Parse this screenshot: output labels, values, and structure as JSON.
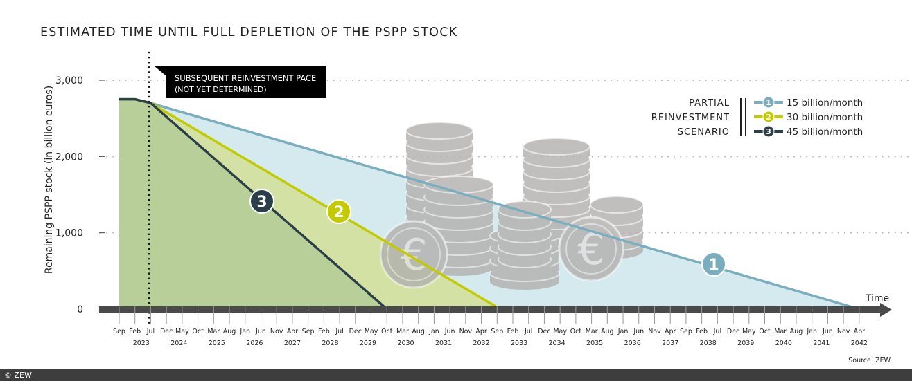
{
  "chart_data": {
    "type": "area",
    "title": "ESTIMATED TIME UNTIL FULL DEPLETION OF THE PSPP STOCK",
    "ylabel": "Remaining PSPP stock (in billion euros)",
    "xlabel": "Time",
    "ylim": [
      0,
      3000
    ],
    "yticks": [
      "0",
      "1,000",
      "2,000",
      "3,000"
    ],
    "ytick_values": [
      0,
      1000,
      2000,
      3000
    ],
    "grid": "horizontal dotted",
    "xlim": [
      "2022-09",
      "2042-04"
    ],
    "xtick_months": [
      "Sep",
      "Feb",
      "Jul",
      "Dec",
      "May",
      "Oct",
      "Mar",
      "Aug",
      "Jan",
      "Jun",
      "Nov",
      "Apr",
      "Sep",
      "Feb",
      "Jul",
      "Dec",
      "May",
      "Oct",
      "Mar",
      "Aug",
      "Jan",
      "Jun",
      "Nov",
      "Apr",
      "Sep",
      "Feb",
      "Jul",
      "Dec",
      "May",
      "Oct",
      "Mar",
      "Aug",
      "Jan",
      "Jun",
      "Nov",
      "Apr",
      "Sep",
      "Feb",
      "Jul",
      "Dec",
      "May",
      "Oct",
      "Mar",
      "Aug",
      "Jan",
      "Jun",
      "Nov",
      "Apr"
    ],
    "xtick_years": [
      "2023",
      "2024",
      "2025",
      "2026",
      "2027",
      "2028",
      "2029",
      "2030",
      "2031",
      "2032",
      "2033",
      "2034",
      "2035",
      "2036",
      "2037",
      "2038",
      "2039",
      "2040",
      "2041",
      "2042"
    ],
    "annotation": {
      "line1": "SUBSEQUENT REINVESTMENT PACE",
      "line2": "(NOT YET DETERMINED)",
      "date": "2023-07"
    },
    "legend": {
      "title_lines": [
        "PARTIAL",
        "REINVESTMENT",
        "SCENARIO"
      ],
      "placement": "top-right"
    },
    "series": [
      {
        "name": "15 billion/month",
        "marker": "1",
        "color": "#7aaebf",
        "fill": "#d5eaee",
        "points": [
          [
            "2022-09",
            2750
          ],
          [
            "2023-02",
            2750
          ],
          [
            "2023-07",
            2700
          ],
          [
            "2042-04",
            0
          ]
        ]
      },
      {
        "name": "30 billion/month",
        "marker": "2",
        "color": "#c3cb00",
        "fill": "#d3e1a4",
        "points": [
          [
            "2022-09",
            2750
          ],
          [
            "2023-02",
            2750
          ],
          [
            "2023-07",
            2700
          ],
          [
            "2032-10",
            0
          ]
        ]
      },
      {
        "name": "45 billion/month",
        "marker": "3",
        "color": "#2b3f48",
        "fill": "#b9cf99",
        "points": [
          [
            "2022-09",
            2750
          ],
          [
            "2023-02",
            2750
          ],
          [
            "2023-07",
            2700
          ],
          [
            "2029-10",
            0
          ]
        ]
      }
    ],
    "source": "Source: ZEW"
  },
  "footer": {
    "copyright": "© ZEW"
  },
  "decoration": {
    "coin_color": "#b3b1af",
    "currency_symbol": "€"
  }
}
